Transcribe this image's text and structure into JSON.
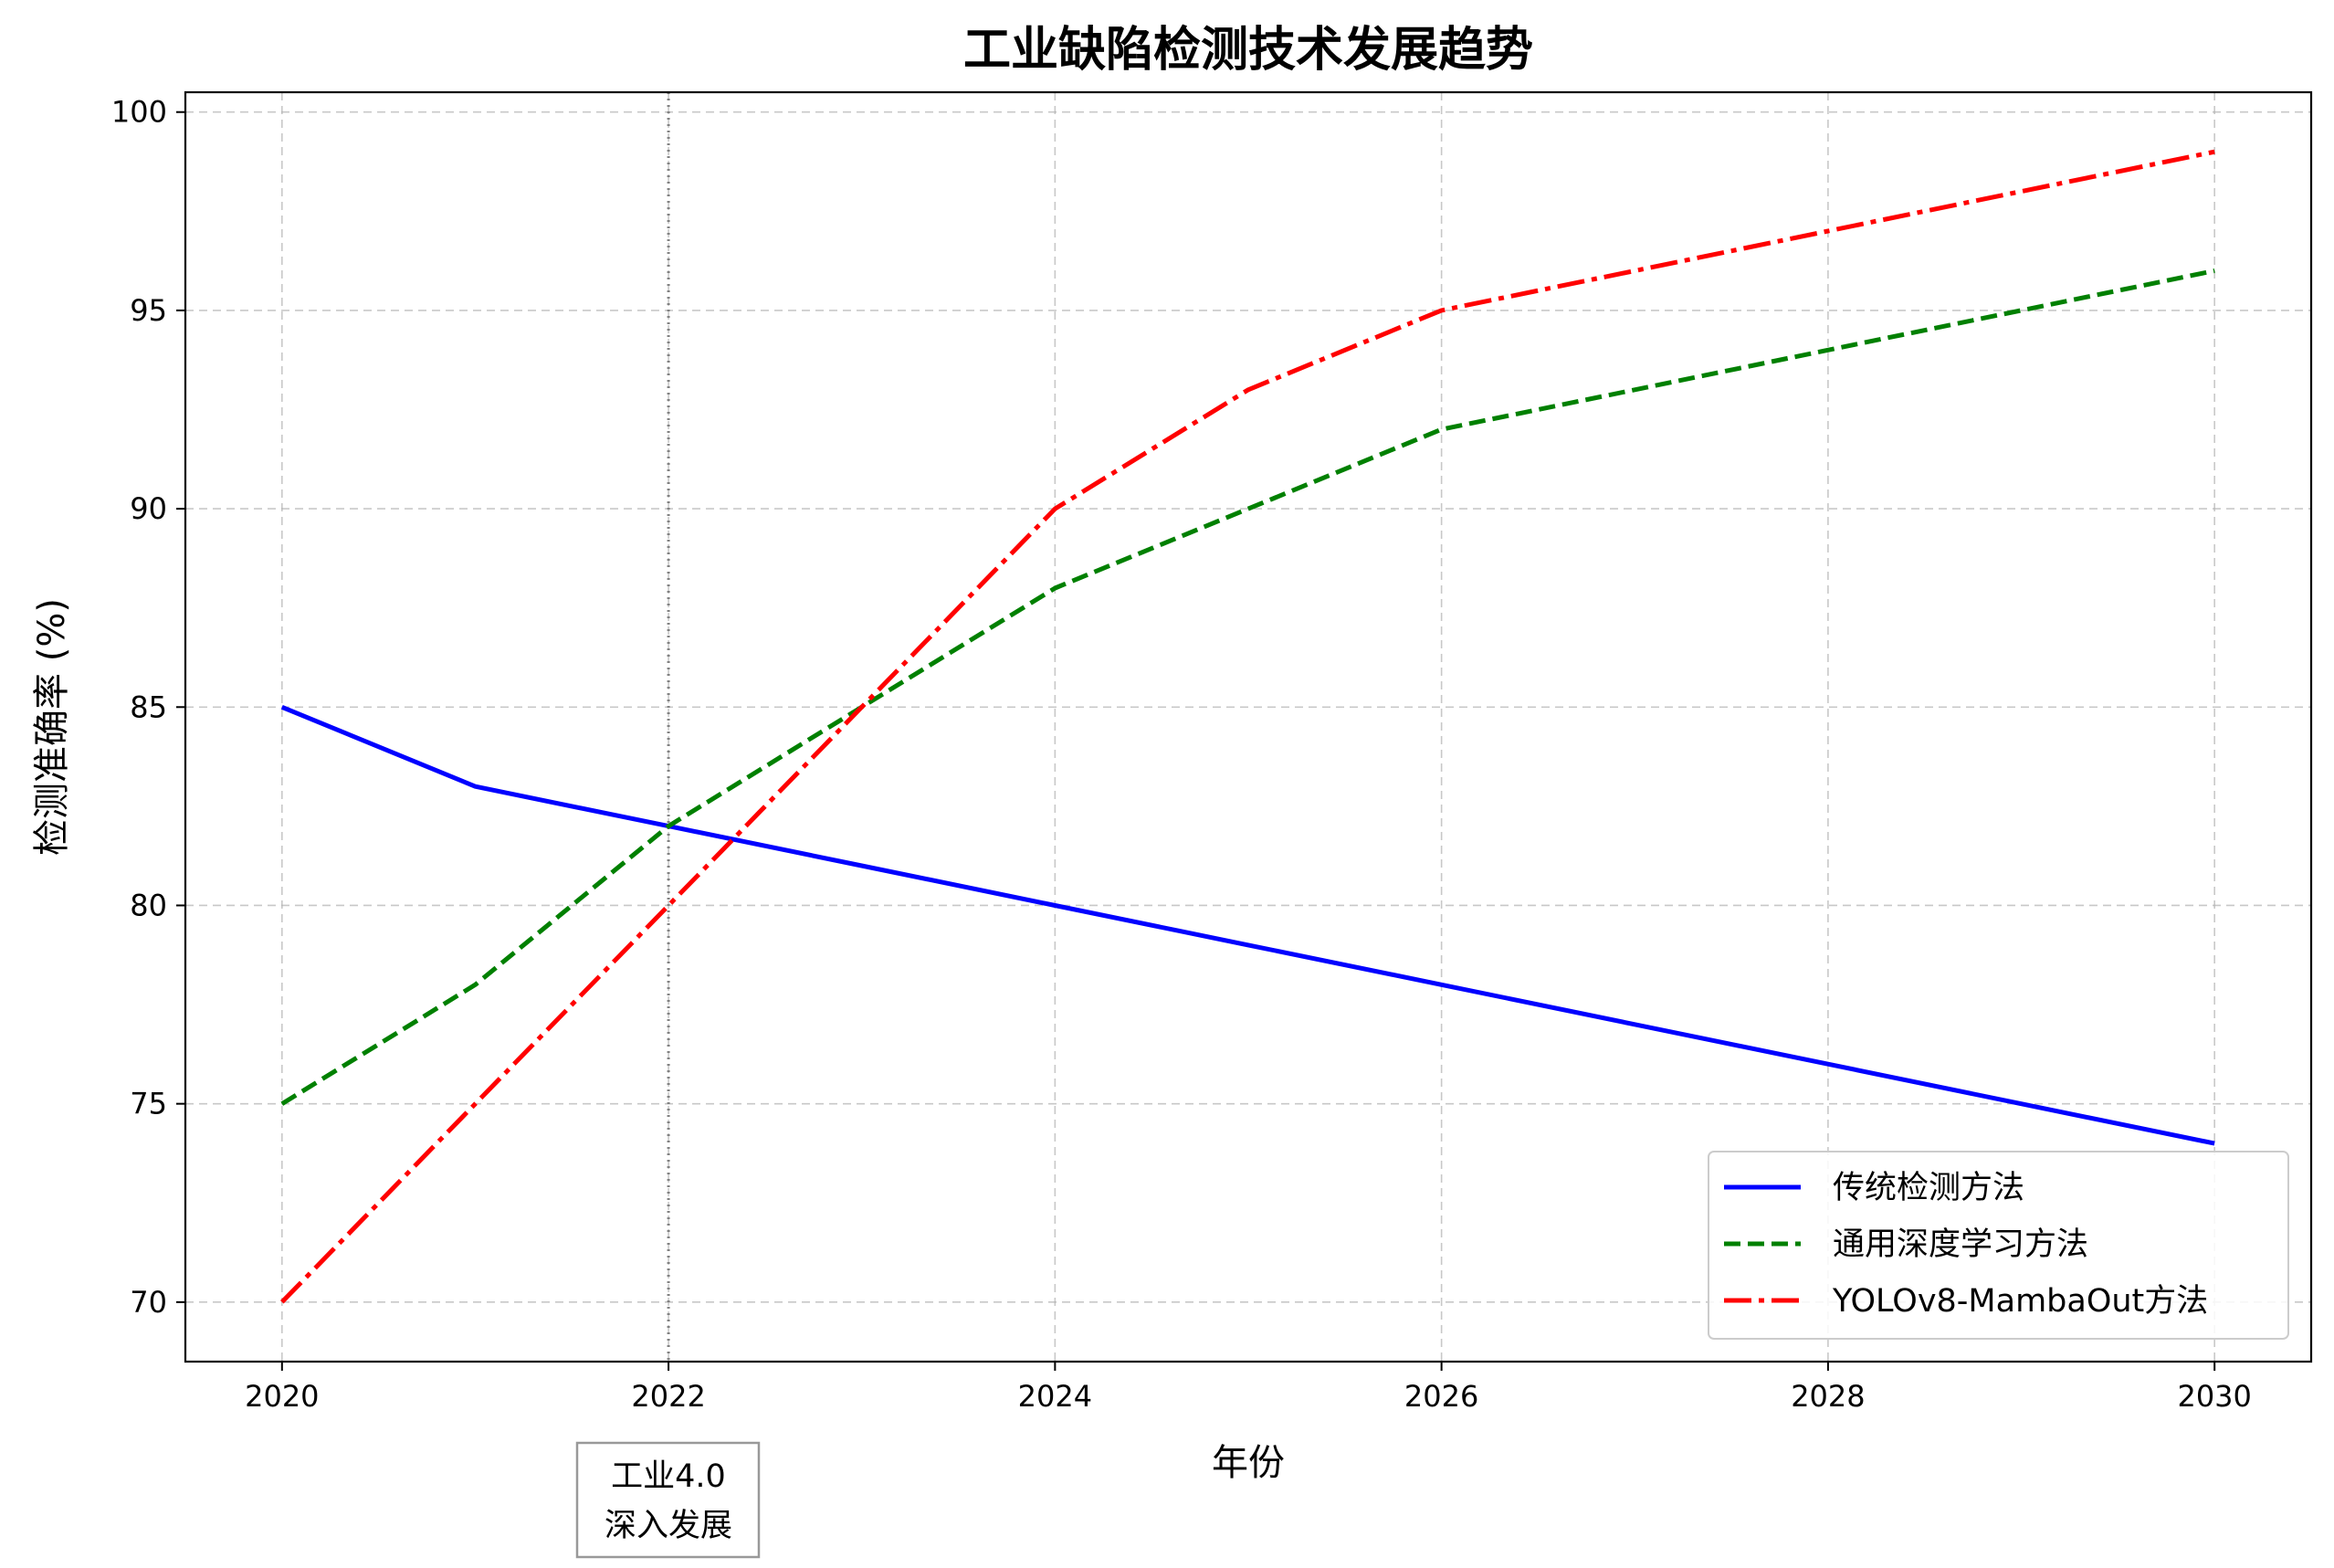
{
  "chart_data": {
    "type": "line",
    "title": "工业缺陷检测技术发展趋势",
    "xlabel": "年份",
    "ylabel": "检测准确率 (%)",
    "x": [
      2020,
      2021,
      2022,
      2023,
      2024,
      2025,
      2026,
      2027,
      2028,
      2029,
      2030
    ],
    "xlim": [
      2019.5,
      2030.5
    ],
    "ylim": [
      68.5,
      100.5
    ],
    "x_ticks": [
      "2020",
      "2022",
      "2024",
      "2026",
      "2028",
      "2030"
    ],
    "y_ticks": [
      "70",
      "75",
      "80",
      "85",
      "90",
      "95",
      "100"
    ],
    "grid": true,
    "legend_position": "lower-right",
    "series": [
      {
        "name": "传统检测方法",
        "color": "#0000ff",
        "style": "solid",
        "values": [
          85,
          83,
          82,
          81,
          80,
          79,
          78,
          77,
          76,
          75,
          74
        ]
      },
      {
        "name": "通用深度学习方法",
        "color": "#008000",
        "style": "dashed",
        "values": [
          75,
          78,
          82,
          85,
          88,
          90,
          92,
          93,
          94,
          95,
          96
        ]
      },
      {
        "name": "YOLOv8-MambaOut方法",
        "color": "#ff0000",
        "style": "dashdot",
        "values": [
          70,
          75,
          80,
          85,
          90,
          93,
          95,
          96,
          97,
          98,
          99
        ]
      }
    ],
    "vline": {
      "x": 2022,
      "color": "#808080",
      "style": "dotted"
    },
    "annotation": {
      "x": 2022,
      "lines": [
        "工业4.0",
        "深入发展"
      ]
    }
  }
}
